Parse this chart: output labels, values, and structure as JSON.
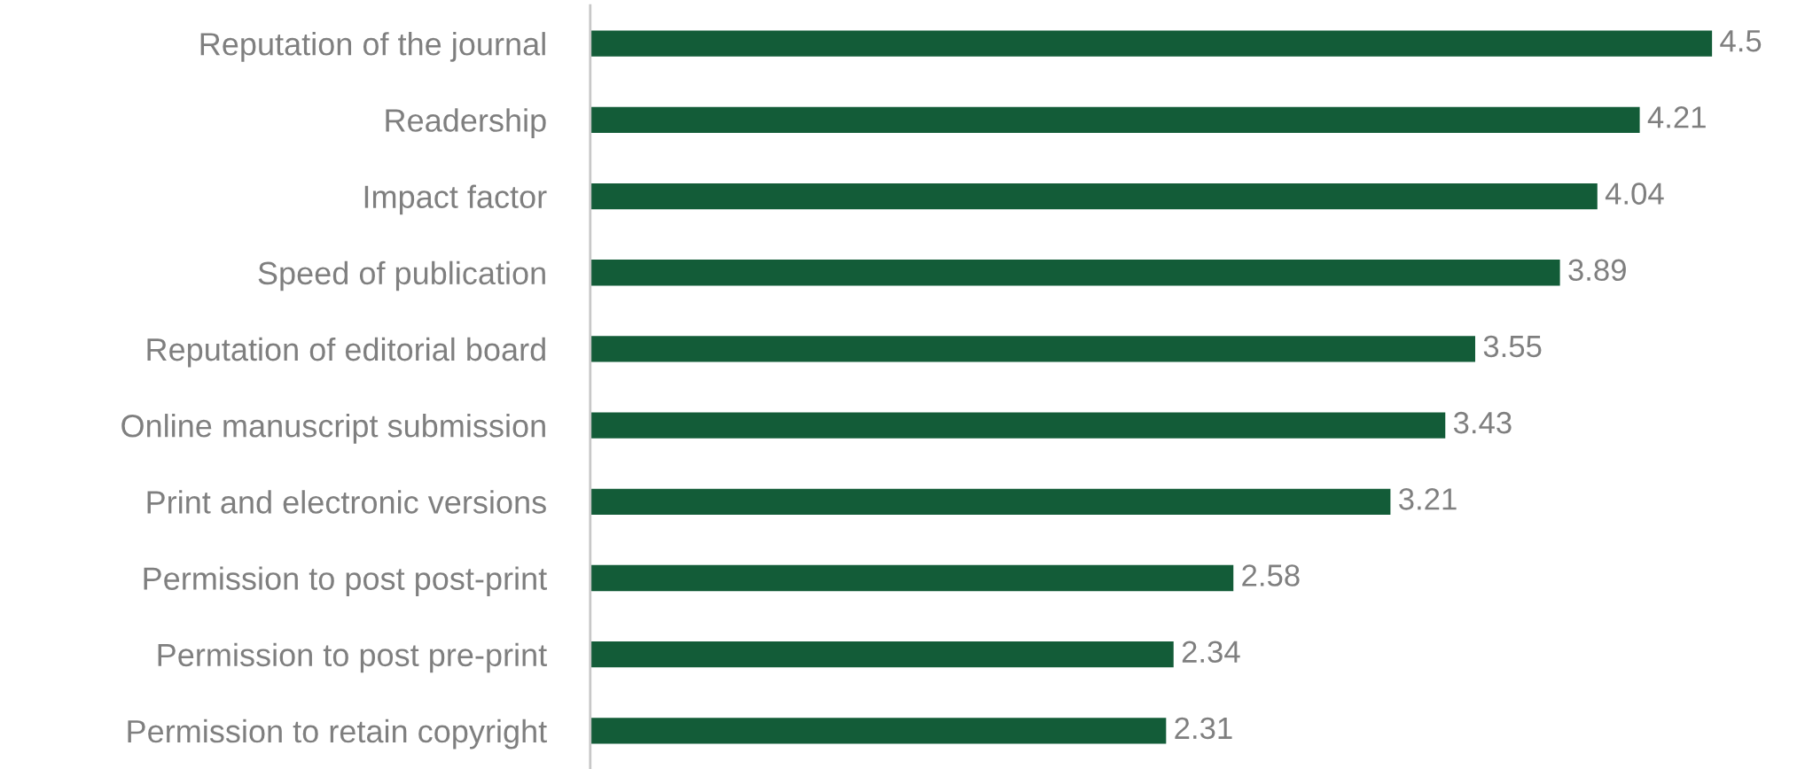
{
  "chart_data": {
    "type": "bar",
    "orientation": "horizontal",
    "categories": [
      "Reputation of the journal",
      "Readership",
      "Impact factor",
      "Speed of publication",
      "Reputation of editorial board",
      "Online manuscript submission",
      "Print and electronic versions",
      "Permission to post post-print",
      "Permission to post pre-print",
      "Permission to retain copyright"
    ],
    "values": [
      4.5,
      4.21,
      4.04,
      3.89,
      3.55,
      3.43,
      3.21,
      2.58,
      2.34,
      2.31
    ],
    "color": "#135c38",
    "data_labels": true,
    "tick_labels": "y",
    "grid": false,
    "legend": false
  }
}
